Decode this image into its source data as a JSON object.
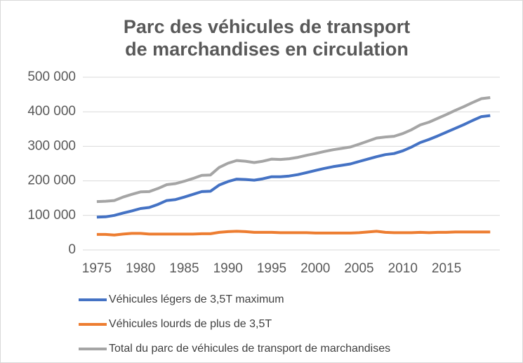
{
  "chart_data": {
    "type": "line",
    "title": "Parc des véhicules de transport de marchandises en circulation",
    "x": [
      1975,
      1976,
      1977,
      1978,
      1979,
      1980,
      1981,
      1982,
      1983,
      1984,
      1985,
      1986,
      1987,
      1988,
      1989,
      1990,
      1991,
      1992,
      1993,
      1994,
      1995,
      1996,
      1997,
      1998,
      1999,
      2000,
      2001,
      2002,
      2003,
      2004,
      2005,
      2006,
      2007,
      2008,
      2009,
      2010,
      2011,
      2012,
      2013,
      2014,
      2015,
      2016,
      2017,
      2018,
      2019,
      2020
    ],
    "series": [
      {
        "name": "Véhicules légers de 3,5T maximum",
        "color": "#4472c4",
        "values": [
          95000,
          96000,
          100000,
          107000,
          113000,
          120000,
          123000,
          132000,
          143000,
          146000,
          153000,
          161000,
          169000,
          170000,
          188000,
          198000,
          205000,
          204000,
          202000,
          206000,
          212000,
          212000,
          214000,
          218000,
          224000,
          230000,
          236000,
          241000,
          245000,
          249000,
          256000,
          263000,
          270000,
          276000,
          279000,
          287000,
          298000,
          311000,
          320000,
          330000,
          341000,
          352000,
          363000,
          375000,
          386000,
          389000
        ]
      },
      {
        "name": "Véhicules lourds de plus de 3,5T",
        "color": "#ed7d31",
        "values": [
          45000,
          45000,
          43000,
          46000,
          48000,
          48000,
          46000,
          46000,
          46000,
          46000,
          46000,
          46000,
          47000,
          47000,
          51000,
          53000,
          54000,
          53000,
          51000,
          51000,
          51000,
          50000,
          50000,
          50000,
          50000,
          49000,
          49000,
          49000,
          49000,
          49000,
          50000,
          52000,
          54000,
          51000,
          50000,
          50000,
          50000,
          51000,
          50000,
          51000,
          51000,
          52000,
          52000,
          52000,
          52000,
          52000
        ]
      },
      {
        "name": "Total du parc de véhicules de transport de marchandises",
        "color": "#a5a5a5",
        "values": [
          140000,
          141000,
          143000,
          153000,
          161000,
          168000,
          169000,
          178000,
          189000,
          192000,
          199000,
          207000,
          216000,
          217000,
          239000,
          251000,
          259000,
          257000,
          253000,
          257000,
          263000,
          262000,
          264000,
          268000,
          274000,
          279000,
          285000,
          290000,
          294000,
          298000,
          306000,
          315000,
          324000,
          327000,
          329000,
          337000,
          348000,
          362000,
          370000,
          381000,
          392000,
          404000,
          415000,
          427000,
          438000,
          441000
        ]
      }
    ],
    "xlim": [
      1973.4,
      2021.1
    ],
    "xticks": [
      1975,
      1980,
      1985,
      1990,
      1995,
      2000,
      2005,
      2010,
      2015
    ],
    "ylim": [
      0,
      500000
    ],
    "yticks": [
      0,
      {
        "value": 100000,
        "label": "100 000"
      },
      {
        "value": 200000,
        "label": "200 000"
      },
      {
        "value": 300000,
        "label": "300 000"
      },
      {
        "value": 400000,
        "label": "400 000"
      },
      {
        "value": 500000,
        "label": "500 000"
      }
    ]
  }
}
